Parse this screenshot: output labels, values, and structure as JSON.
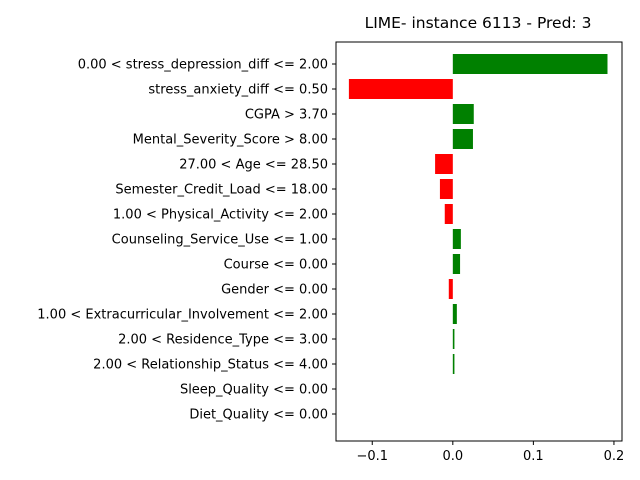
{
  "chart_data": {
    "type": "bar",
    "orientation": "horizontal",
    "title": "LIME- instance 6113 - Pred: 3",
    "xlabel": "",
    "ylabel": "",
    "xlim": [
      -0.145,
      0.21
    ],
    "xticks": [
      -0.1,
      0.0,
      0.1,
      0.2
    ],
    "xtick_labels": [
      "−0.1",
      "0.0",
      "0.1",
      "0.2"
    ],
    "grid": false,
    "colors": {
      "positive": "#008000",
      "negative": "#ff0000"
    },
    "categories": [
      "0.00 < stress_depression_diff <= 2.00",
      "stress_anxiety_diff <= 0.50",
      "CGPA > 3.70",
      "Mental_Severity_Score > 8.00",
      "27.00 < Age <= 28.50",
      "Semester_Credit_Load <= 18.00",
      "1.00 < Physical_Activity <= 2.00",
      "Counseling_Service_Use <= 1.00",
      "Course <= 0.00",
      "Gender <= 0.00",
      "1.00 < Extracurricular_Involvement <= 2.00",
      "2.00 < Residence_Type <= 3.00",
      "2.00 < Relationship_Status <= 4.00",
      "Sleep_Quality <= 0.00",
      "Diet_Quality <= 0.00"
    ],
    "values": [
      0.192,
      -0.129,
      0.026,
      0.025,
      -0.022,
      -0.016,
      -0.01,
      0.01,
      0.009,
      -0.005,
      0.005,
      0.002,
      0.002,
      0.0,
      0.0
    ]
  }
}
